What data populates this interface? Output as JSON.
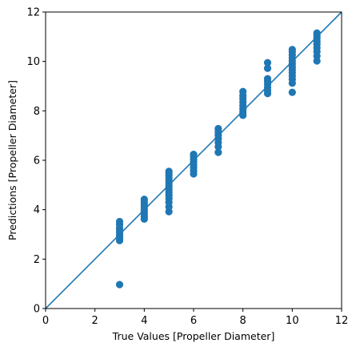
{
  "chart_data": {
    "type": "scatter",
    "title": "",
    "xlabel": "True Values [Propeller Diameter]",
    "ylabel": "Predictions [Propeller Diameter]",
    "xlim": [
      0,
      12
    ],
    "ylim": [
      0,
      12
    ],
    "xticks": [
      0,
      2,
      4,
      6,
      8,
      10,
      12
    ],
    "yticks": [
      0,
      2,
      4,
      6,
      8,
      10,
      12
    ],
    "grid": false,
    "legend": "none",
    "colors": {
      "points": "#1f77b4",
      "reference_line": "#1f77b4",
      "axes": "#000000"
    },
    "reference_line": {
      "from": [
        0,
        0
      ],
      "to": [
        12,
        12
      ]
    },
    "series": [
      {
        "points": [
          {
            "x": 3,
            "y": 0.97
          },
          {
            "x": 3,
            "y": 2.75
          },
          {
            "x": 3,
            "y": 2.85
          },
          {
            "x": 3,
            "y": 2.95
          },
          {
            "x": 3,
            "y": 3.05
          },
          {
            "x": 3,
            "y": 3.15
          },
          {
            "x": 3,
            "y": 3.25
          },
          {
            "x": 3,
            "y": 3.4
          },
          {
            "x": 3,
            "y": 3.52
          },
          {
            "x": 4,
            "y": 3.62
          },
          {
            "x": 4,
            "y": 3.72
          },
          {
            "x": 4,
            "y": 3.82
          },
          {
            "x": 4,
            "y": 3.92
          },
          {
            "x": 4,
            "y": 4.02
          },
          {
            "x": 4,
            "y": 4.12
          },
          {
            "x": 4,
            "y": 4.22
          },
          {
            "x": 4,
            "y": 4.32
          },
          {
            "x": 4,
            "y": 4.42
          },
          {
            "x": 5,
            "y": 3.92
          },
          {
            "x": 5,
            "y": 4.12
          },
          {
            "x": 5,
            "y": 4.3
          },
          {
            "x": 5,
            "y": 4.45
          },
          {
            "x": 5,
            "y": 4.58
          },
          {
            "x": 5,
            "y": 4.7
          },
          {
            "x": 5,
            "y": 4.82
          },
          {
            "x": 5,
            "y": 4.94
          },
          {
            "x": 5,
            "y": 5.05
          },
          {
            "x": 5,
            "y": 5.16
          },
          {
            "x": 5,
            "y": 5.27
          },
          {
            "x": 5,
            "y": 5.38
          },
          {
            "x": 5,
            "y": 5.48
          },
          {
            "x": 5,
            "y": 5.55
          },
          {
            "x": 6,
            "y": 5.45
          },
          {
            "x": 6,
            "y": 5.58
          },
          {
            "x": 6,
            "y": 5.7
          },
          {
            "x": 6,
            "y": 5.82
          },
          {
            "x": 6,
            "y": 5.94
          },
          {
            "x": 6,
            "y": 6.05
          },
          {
            "x": 6,
            "y": 6.15
          },
          {
            "x": 6,
            "y": 6.24
          },
          {
            "x": 7,
            "y": 6.32
          },
          {
            "x": 7,
            "y": 6.55
          },
          {
            "x": 7,
            "y": 6.72
          },
          {
            "x": 7,
            "y": 6.88
          },
          {
            "x": 7,
            "y": 7.02
          },
          {
            "x": 7,
            "y": 7.15
          },
          {
            "x": 7,
            "y": 7.28
          },
          {
            "x": 8,
            "y": 7.82
          },
          {
            "x": 8,
            "y": 7.95
          },
          {
            "x": 8,
            "y": 8.08
          },
          {
            "x": 8,
            "y": 8.22
          },
          {
            "x": 8,
            "y": 8.36
          },
          {
            "x": 8,
            "y": 8.5
          },
          {
            "x": 8,
            "y": 8.62
          },
          {
            "x": 8,
            "y": 8.78
          },
          {
            "x": 9,
            "y": 8.7
          },
          {
            "x": 9,
            "y": 8.82
          },
          {
            "x": 9,
            "y": 8.95
          },
          {
            "x": 9,
            "y": 9.08
          },
          {
            "x": 9,
            "y": 9.2
          },
          {
            "x": 9,
            "y": 9.3
          },
          {
            "x": 9,
            "y": 9.72
          },
          {
            "x": 9,
            "y": 9.95
          },
          {
            "x": 10,
            "y": 8.75
          },
          {
            "x": 10,
            "y": 9.12
          },
          {
            "x": 10,
            "y": 9.28
          },
          {
            "x": 10,
            "y": 9.42
          },
          {
            "x": 10,
            "y": 9.55
          },
          {
            "x": 10,
            "y": 9.67
          },
          {
            "x": 10,
            "y": 9.78
          },
          {
            "x": 10,
            "y": 9.9
          },
          {
            "x": 10,
            "y": 10.02
          },
          {
            "x": 10,
            "y": 10.14
          },
          {
            "x": 10,
            "y": 10.27
          },
          {
            "x": 10,
            "y": 10.4
          },
          {
            "x": 10,
            "y": 10.48
          },
          {
            "x": 11,
            "y": 10.02
          },
          {
            "x": 11,
            "y": 10.22
          },
          {
            "x": 11,
            "y": 10.4
          },
          {
            "x": 11,
            "y": 10.55
          },
          {
            "x": 11,
            "y": 10.7
          },
          {
            "x": 11,
            "y": 10.82
          },
          {
            "x": 11,
            "y": 10.94
          },
          {
            "x": 11,
            "y": 11.05
          },
          {
            "x": 11,
            "y": 11.15
          }
        ]
      }
    ]
  }
}
